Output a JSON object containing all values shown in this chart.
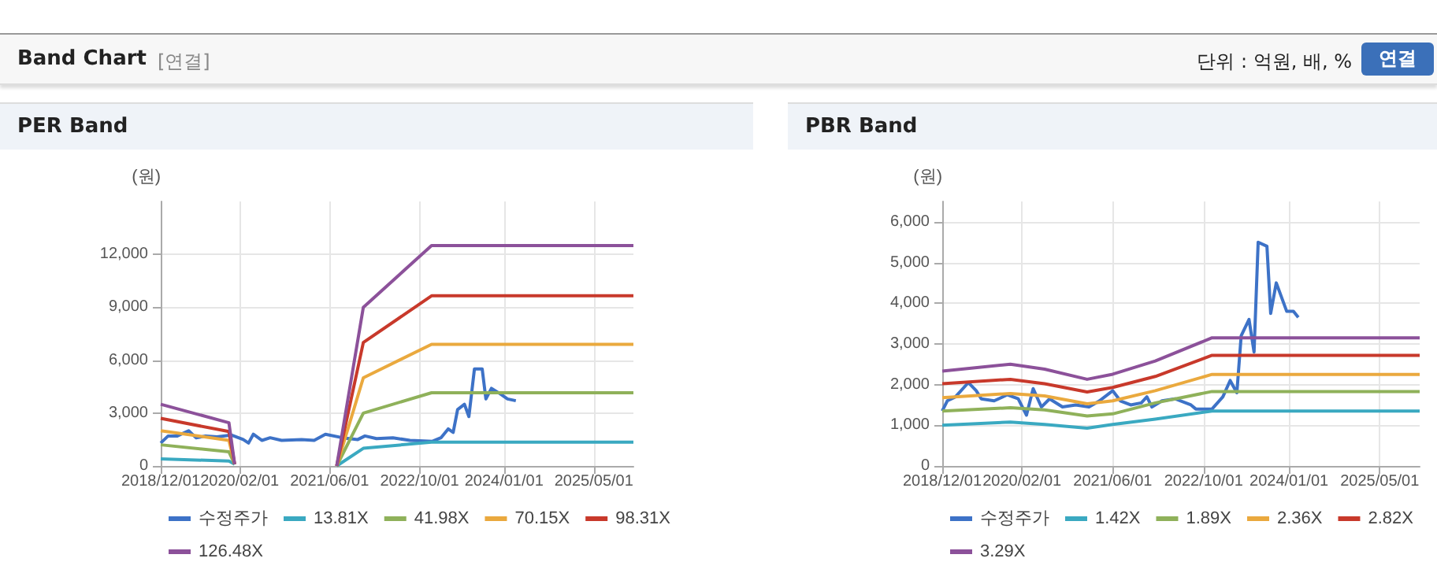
{
  "chart_data": [
    {
      "type": "line",
      "title": "PER Band",
      "ylabel": "(원)",
      "annotations": [
        "Band Chart",
        "[연결]",
        "단위 : 억원, 배, %",
        "연결"
      ],
      "x": [
        "2018-12-01",
        "2019-12-05",
        "2020-01-05",
        "2020-06-01",
        "2021-07-10",
        "2021-12-01",
        "2022-12-05",
        "2025-12-01"
      ],
      "xlim": [
        "2018-12-01",
        "2025-12-01"
      ],
      "xticks": [
        {
          "value": "2018-12-01",
          "label": "2018/12/01"
        },
        {
          "value": "2020-02-01",
          "label": "2020/02/01"
        },
        {
          "value": "2021-06-01",
          "label": "2021/06/01"
        },
        {
          "value": "2022-10-01",
          "label": "2022/10/01"
        },
        {
          "value": "2024-01-01",
          "label": "2024/01/01"
        },
        {
          "value": "2025-05-01",
          "label": "2025/05/01"
        }
      ],
      "ylim": [
        0,
        15000
      ],
      "yticks": [
        0,
        {
          "value": 3000,
          "label": "3,000"
        },
        {
          "value": 6000,
          "label": "6,000"
        },
        {
          "value": 9000,
          "label": "9,000"
        },
        {
          "value": 12000,
          "label": "12,000"
        }
      ],
      "grid": true,
      "legend": "bottom",
      "marker": "none",
      "series": [
        {
          "name": "수정주가",
          "color": "#3d72c7",
          "x": [
            "2018-12-01",
            "2019-01-10",
            "2019-03-01",
            "2019-05-01",
            "2019-06-10",
            "2019-08-01",
            "2019-10-01",
            "2019-12-20",
            "2020-02-20",
            "2020-03-20",
            "2020-04-15",
            "2020-06-01",
            "2020-07-15",
            "2020-09-15",
            "2021-01-01",
            "2021-03-10",
            "2021-05-10",
            "2021-08-10",
            "2021-11-01",
            "2021-12-10",
            "2022-02-10",
            "2022-05-10",
            "2022-08-10",
            "2022-12-10",
            "2023-01-25",
            "2023-03-05",
            "2023-04-01",
            "2023-04-25",
            "2023-06-01",
            "2023-06-25",
            "2023-07-25",
            "2023-09-05",
            "2023-09-25",
            "2023-10-25",
            "2023-12-10",
            "2024-01-20",
            "2024-03-05"
          ],
          "values": [
            1300,
            1700,
            1700,
            2000,
            1600,
            1700,
            1650,
            1750,
            1500,
            1300,
            1800,
            1450,
            1600,
            1450,
            1500,
            1450,
            1800,
            1600,
            1500,
            1700,
            1550,
            1600,
            1450,
            1400,
            1600,
            2100,
            1900,
            3200,
            3500,
            2800,
            5500,
            5500,
            3800,
            4400,
            4100,
            3800,
            3700
          ]
        },
        {
          "name": "13.81X",
          "color": "#3aa9c1",
          "values": [
            400,
            280,
            100,
            null,
            0,
            1000,
            1350,
            1350
          ]
        },
        {
          "name": "41.98X",
          "color": "#8fb15a",
          "values": [
            1200,
            800,
            100,
            null,
            0,
            3000,
            4150,
            4150
          ]
        },
        {
          "name": "70.15X",
          "color": "#eaa93e",
          "values": [
            2000,
            1450,
            100,
            null,
            0,
            5000,
            6900,
            6900
          ]
        },
        {
          "name": "98.31X",
          "color": "#c8392b",
          "values": [
            2700,
            1950,
            100,
            null,
            0,
            7000,
            9650,
            9650
          ]
        },
        {
          "name": "126.48X",
          "color": "#8c519a",
          "values": [
            3500,
            2450,
            100,
            null,
            0,
            9000,
            12500,
            12500
          ]
        }
      ]
    },
    {
      "type": "line",
      "title": "PBR Band",
      "ylabel": "(원)",
      "x": [
        "2018-12-01",
        "2019-12-01",
        "2020-06-01",
        "2021-01-15",
        "2021-06-01",
        "2022-01-15",
        "2022-11-15",
        "2025-12-01"
      ],
      "xlim": [
        "2018-12-01",
        "2025-12-01"
      ],
      "xticks": [
        {
          "value": "2018-12-01",
          "label": "2018/12/01"
        },
        {
          "value": "2020-02-01",
          "label": "2020/02/01"
        },
        {
          "value": "2021-06-01",
          "label": "2021/06/01"
        },
        {
          "value": "2022-10-01",
          "label": "2022/10/01"
        },
        {
          "value": "2024-01-01",
          "label": "2024/01/01"
        },
        {
          "value": "2025-05-01",
          "label": "2025/05/01"
        }
      ],
      "ylim": [
        0,
        6500
      ],
      "yticks": [
        0,
        {
          "value": 1000,
          "label": "1,000"
        },
        {
          "value": 2000,
          "label": "2,000"
        },
        {
          "value": 3000,
          "label": "3,000"
        },
        {
          "value": 4000,
          "label": "4,000"
        },
        {
          "value": 5000,
          "label": "5,000"
        },
        {
          "value": 6000,
          "label": "6,000"
        }
      ],
      "grid": true,
      "legend": "bottom",
      "marker": "none",
      "series": [
        {
          "name": "수정주가",
          "color": "#3d72c7",
          "x": [
            "2018-12-01",
            "2018-12-28",
            "2019-02-10",
            "2019-04-20",
            "2019-06-01",
            "2019-06-28",
            "2019-09-05",
            "2019-11-15",
            "2020-01-12",
            "2020-02-25",
            "2020-04-01",
            "2020-05-15",
            "2020-06-28",
            "2020-09-05",
            "2020-11-15",
            "2021-01-25",
            "2021-03-22",
            "2021-06-01",
            "2021-07-12",
            "2021-09-05",
            "2021-11-01",
            "2021-12-01",
            "2021-12-28",
            "2022-02-20",
            "2022-05-01",
            "2022-07-25",
            "2022-08-20",
            "2022-11-15",
            "2023-01-12",
            "2023-02-20",
            "2023-03-28",
            "2023-04-20",
            "2023-06-01",
            "2023-06-28",
            "2023-07-20",
            "2023-09-05",
            "2023-09-25",
            "2023-10-25",
            "2023-12-20",
            "2024-01-25",
            "2024-02-20"
          ],
          "values": [
            1350,
            1600,
            1700,
            2050,
            1850,
            1650,
            1600,
            1750,
            1650,
            1250,
            1900,
            1450,
            1650,
            1450,
            1500,
            1450,
            1600,
            1850,
            1600,
            1500,
            1550,
            1700,
            1450,
            1600,
            1650,
            1500,
            1400,
            1400,
            1700,
            2100,
            1800,
            3200,
            3600,
            2800,
            5500,
            5400,
            3750,
            4500,
            3800,
            3800,
            3650
          ]
        },
        {
          "name": "1.42X",
          "color": "#3aa9c1",
          "values": [
            1000,
            1080,
            1020,
            930,
            1020,
            1150,
            1350,
            1350
          ]
        },
        {
          "name": "1.89X",
          "color": "#8fb15a",
          "values": [
            1350,
            1430,
            1380,
            1230,
            1280,
            1550,
            1830,
            1830
          ]
        },
        {
          "name": "2.36X",
          "color": "#eaa93e",
          "values": [
            1680,
            1780,
            1720,
            1530,
            1600,
            1850,
            2250,
            2250
          ]
        },
        {
          "name": "2.82X",
          "color": "#c8392b",
          "values": [
            2020,
            2130,
            2020,
            1820,
            1930,
            2200,
            2720,
            2720
          ]
        },
        {
          "name": "3.29X",
          "color": "#8c519a",
          "values": [
            2330,
            2500,
            2380,
            2130,
            2255,
            2580,
            3150,
            3150
          ]
        }
      ]
    }
  ]
}
